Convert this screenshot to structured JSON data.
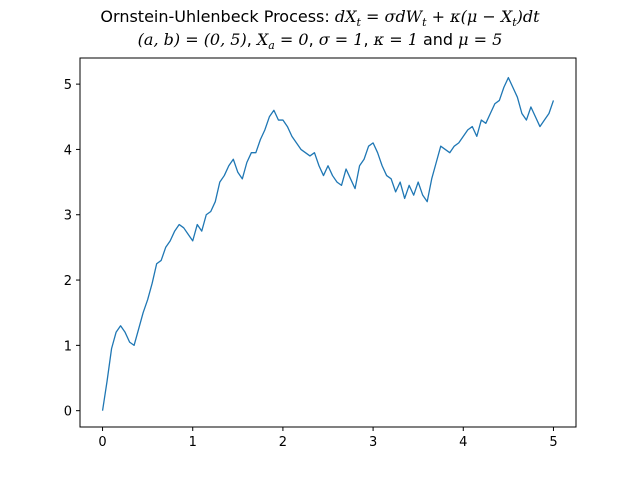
{
  "chart_data": {
    "type": "line",
    "title_line1": {
      "prefix": "Ornstein-Uhlenbeck Process: ",
      "formula": "dX_t = σdW_t + κ(μ − X_t)dt"
    },
    "title_line2": {
      "interval": "(a, b) = (0, 5)",
      "x0": "X_a = 0",
      "sigma": "σ = 1",
      "kappa": "κ = 1",
      "mu": "μ = 5",
      "joiner": "and"
    },
    "xlabel": "",
    "ylabel": "",
    "xlim": [
      -0.25,
      5.25
    ],
    "ylim": [
      -0.25,
      5.4
    ],
    "xticks": [
      0,
      1,
      2,
      3,
      4,
      5
    ],
    "yticks": [
      0,
      1,
      2,
      3,
      4,
      5
    ],
    "grid": false,
    "line_color": "#1f77b4",
    "series": [
      {
        "x": [
          0,
          0.05,
          0.1,
          0.15,
          0.2,
          0.25,
          0.3,
          0.35,
          0.4,
          0.45,
          0.5,
          0.55,
          0.6,
          0.65,
          0.7,
          0.75,
          0.8,
          0.85,
          0.9,
          0.95,
          1.0,
          1.05,
          1.1,
          1.15,
          1.2,
          1.25,
          1.3,
          1.35,
          1.4,
          1.45,
          1.5,
          1.55,
          1.6,
          1.65,
          1.7,
          1.75,
          1.8,
          1.85,
          1.9,
          1.95,
          2.0,
          2.05,
          2.1,
          2.15,
          2.2,
          2.25,
          2.3,
          2.35,
          2.4,
          2.45,
          2.5,
          2.55,
          2.6,
          2.65,
          2.7,
          2.75,
          2.8,
          2.85,
          2.9,
          2.95,
          3.0,
          3.05,
          3.1,
          3.15,
          3.2,
          3.25,
          3.3,
          3.35,
          3.4,
          3.45,
          3.5,
          3.55,
          3.6,
          3.65,
          3.7,
          3.75,
          3.8,
          3.85,
          3.9,
          3.95,
          4.0,
          4.05,
          4.1,
          4.15,
          4.2,
          4.25,
          4.3,
          4.35,
          4.4,
          4.45,
          4.5,
          4.55,
          4.6,
          4.65,
          4.7,
          4.75,
          4.8,
          4.85,
          4.9,
          4.95,
          5.0
        ],
        "y": [
          0.0,
          0.45,
          0.95,
          1.2,
          1.3,
          1.2,
          1.05,
          1.0,
          1.25,
          1.5,
          1.7,
          1.95,
          2.25,
          2.3,
          2.5,
          2.6,
          2.75,
          2.85,
          2.8,
          2.7,
          2.6,
          2.85,
          2.75,
          3.0,
          3.05,
          3.2,
          3.5,
          3.6,
          3.75,
          3.85,
          3.65,
          3.55,
          3.8,
          3.95,
          3.95,
          4.15,
          4.3,
          4.5,
          4.6,
          4.45,
          4.45,
          4.35,
          4.2,
          4.1,
          4.0,
          3.95,
          3.9,
          3.95,
          3.75,
          3.6,
          3.75,
          3.6,
          3.5,
          3.45,
          3.7,
          3.55,
          3.4,
          3.75,
          3.85,
          4.05,
          4.1,
          3.95,
          3.75,
          3.6,
          3.55,
          3.35,
          3.5,
          3.25,
          3.45,
          3.3,
          3.5,
          3.3,
          3.2,
          3.55,
          3.8,
          4.05,
          4.0,
          3.95,
          4.05,
          4.1,
          4.2,
          4.3,
          4.35,
          4.2,
          4.45,
          4.4,
          4.55,
          4.7,
          4.75,
          4.95,
          5.1,
          4.95,
          4.8,
          4.55,
          4.45,
          4.65,
          4.5,
          4.35,
          4.45,
          4.55,
          4.75
        ]
      }
    ]
  }
}
